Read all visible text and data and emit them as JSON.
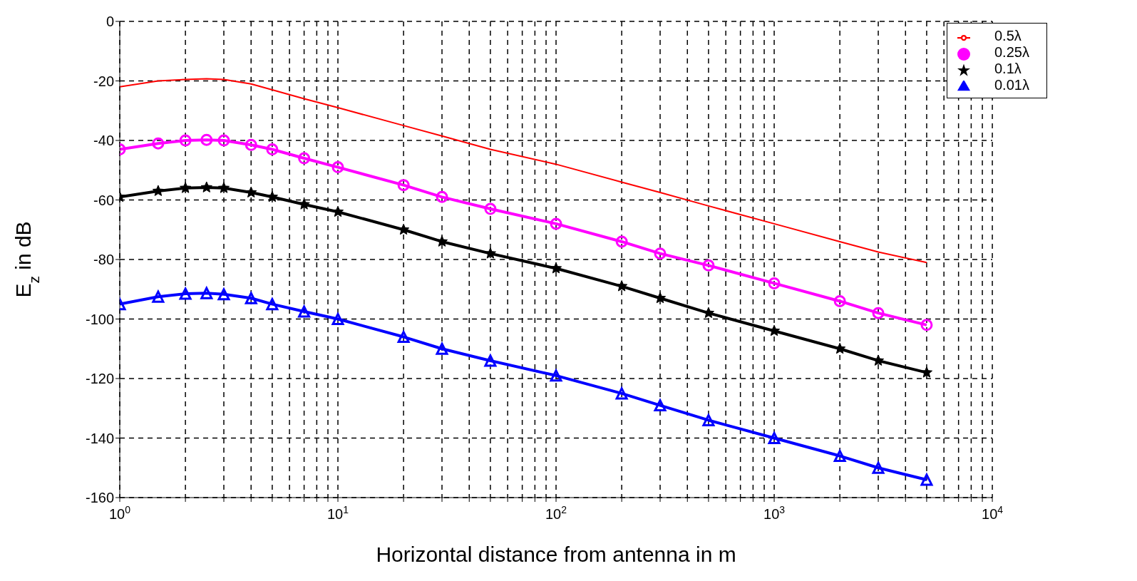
{
  "chart_data": {
    "type": "line",
    "xlabel": "Horizontal distance from antenna in m",
    "ylabel": "E$_{z}$ in dB",
    "log": "x",
    "grid": true,
    "legend": "top right",
    "x": [
      1,
      1.5,
      2,
      2.5,
      3,
      4,
      5,
      7,
      10,
      20,
      30,
      50,
      100,
      200,
      300,
      500,
      1000,
      2000,
      3000,
      5000
    ],
    "xlim": [
      1,
      10000
    ],
    "xticks": [
      {
        "value": 1,
        "label": "10$^{0}$"
      },
      {
        "value": 2,
        "label": null
      },
      {
        "value": 3,
        "label": null
      },
      {
        "value": 4,
        "label": null
      },
      {
        "value": 5,
        "label": null
      },
      {
        "value": 6,
        "label": null
      },
      {
        "value": 7,
        "label": null
      },
      {
        "value": 8,
        "label": null
      },
      {
        "value": 9,
        "label": null
      },
      {
        "value": 10,
        "label": "10$^{1}$"
      },
      {
        "value": 20,
        "label": null
      },
      {
        "value": 30,
        "label": null
      },
      {
        "value": 40,
        "label": null
      },
      {
        "value": 50,
        "label": null
      },
      {
        "value": 60,
        "label": null
      },
      {
        "value": 70,
        "label": null
      },
      {
        "value": 80,
        "label": null
      },
      {
        "value": 90,
        "label": null
      },
      {
        "value": 100,
        "label": "10$^{2}$"
      },
      {
        "value": 200,
        "label": null
      },
      {
        "value": 300,
        "label": null
      },
      {
        "value": 400,
        "label": null
      },
      {
        "value": 500,
        "label": null
      },
      {
        "value": 600,
        "label": null
      },
      {
        "value": 700,
        "label": null
      },
      {
        "value": 800,
        "label": null
      },
      {
        "value": 900,
        "label": null
      },
      {
        "value": 1000,
        "label": "10$^{3}$"
      },
      {
        "value": 2000,
        "label": null
      },
      {
        "value": 3000,
        "label": null
      },
      {
        "value": 4000,
        "label": null
      },
      {
        "value": 5000,
        "label": null
      },
      {
        "value": 6000,
        "label": null
      },
      {
        "value": 7000,
        "label": null
      },
      {
        "value": 8000,
        "label": null
      },
      {
        "value": 9000,
        "label": null
      },
      {
        "value": 10000,
        "label": "10$^{4}$"
      }
    ],
    "ylim": [
      -160,
      0
    ],
    "yticks": [
      -160,
      -140,
      -120,
      -100,
      -80,
      -60,
      -40,
      -20,
      0
    ],
    "series": [
      {
        "name": "0.5λ",
        "color": "#ff0000",
        "marker": "none",
        "values": [
          -22,
          -20,
          -19.5,
          -19.3,
          -19.5,
          -21,
          -23,
          -26,
          -29,
          -35,
          -38.5,
          -43,
          -48,
          -54,
          -57.5,
          -62,
          -68,
          -74,
          -77.5,
          -81
        ]
      },
      {
        "name": "0.25λ",
        "color": "#ff00ff",
        "marker": "circle",
        "values": [
          -43,
          -41,
          -40,
          -39.8,
          -40,
          -41.5,
          -43,
          -46,
          -49,
          -55,
          -59,
          -63,
          -68,
          -74,
          -78,
          -82,
          -88,
          -94,
          -98,
          -102
        ]
      },
      {
        "name": "0.1λ",
        "color": "#000000",
        "marker": "star",
        "values": [
          -59,
          -57,
          -56,
          -55.8,
          -56,
          -57.5,
          -59,
          -61.5,
          -64,
          -70,
          -74,
          -78,
          -83,
          -89,
          -93,
          -98,
          -104,
          -110,
          -114,
          -118
        ]
      },
      {
        "name": "0.01λ",
        "color": "#0000ff",
        "marker": "triangle",
        "values": [
          -95,
          -92.5,
          -91.5,
          -91.3,
          -91.7,
          -93,
          -95,
          -97.5,
          -100,
          -106,
          -110,
          -114,
          -119,
          -125,
          -129,
          -134,
          -140,
          -146,
          -150,
          -154
        ]
      }
    ]
  }
}
